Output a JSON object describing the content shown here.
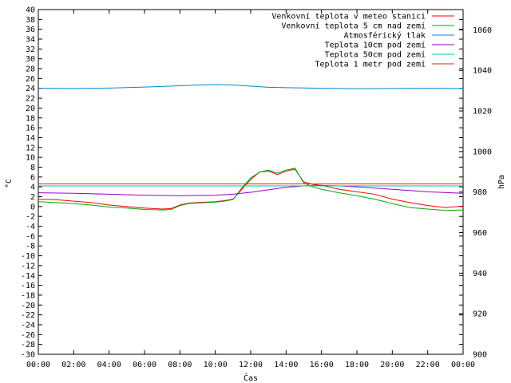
{
  "chart_data": {
    "type": "line",
    "xlabel": "Čas",
    "ylabel_left": "°C",
    "ylabel_right": "hPa",
    "xlim": [
      0,
      24
    ],
    "ylim_left": [
      -30,
      40
    ],
    "ylim_right": [
      900,
      1070
    ],
    "grid": false,
    "legend_position": "top-right",
    "x_ticks": [
      "00:00",
      "02:00",
      "04:00",
      "06:00",
      "08:00",
      "10:00",
      "12:00",
      "14:00",
      "16:00",
      "18:00",
      "20:00",
      "22:00",
      "00:00"
    ],
    "y_ticks_left": [
      "-30",
      "-28",
      "-26",
      "-24",
      "-22",
      "-20",
      "-18",
      "-16",
      "-14",
      "-12",
      "-10",
      "-8",
      "-6",
      "-4",
      "-2",
      "0",
      "2",
      "4",
      "6",
      "8",
      "10",
      "12",
      "14",
      "16",
      "18",
      "20",
      "22",
      "24",
      "26",
      "28",
      "30",
      "32",
      "34",
      "36",
      "38",
      "40"
    ],
    "y_ticks_right": [
      "900",
      "920",
      "940",
      "960",
      "980",
      "1000",
      "1020",
      "1040",
      "1060"
    ],
    "series": [
      {
        "name": "Venkovní teplota v meteo stanici",
        "color": "#ff0000",
        "axis": "left",
        "x": [
          0,
          1,
          2,
          3,
          4,
          5,
          6,
          7,
          7.5,
          8,
          8.5,
          9,
          10,
          10.5,
          11,
          11.5,
          12,
          12.5,
          13,
          13.5,
          14,
          14.5,
          15,
          15.5,
          16,
          17,
          18,
          19,
          20,
          21,
          22,
          23,
          24
        ],
        "y": [
          1.5,
          1.4,
          1.1,
          0.8,
          0.3,
          0,
          -0.3,
          -0.5,
          -0.4,
          0.3,
          0.7,
          0.8,
          1.0,
          1.2,
          1.5,
          3.5,
          5.5,
          7.0,
          7.2,
          6.5,
          7.2,
          7.6,
          5.0,
          4.5,
          4.3,
          3.5,
          3.0,
          2.5,
          1.5,
          0.8,
          0.2,
          -0.2,
          0.1
        ]
      },
      {
        "name": "Venkovní teplota 5 cm nad zemí",
        "color": "#00aa00",
        "axis": "left",
        "x": [
          0,
          1,
          2,
          3,
          4,
          5,
          6,
          7,
          7.5,
          8,
          8.5,
          9,
          10,
          10.5,
          11,
          11.5,
          12,
          12.5,
          13,
          13.5,
          14,
          14.5,
          15,
          15.5,
          16,
          17,
          18,
          19,
          20,
          21,
          22,
          23,
          24
        ],
        "y": [
          1.0,
          0.8,
          0.6,
          0.3,
          -0.1,
          -0.3,
          -0.6,
          -0.7,
          -0.6,
          0.2,
          0.6,
          0.7,
          0.9,
          1.1,
          1.4,
          3.8,
          5.8,
          7.0,
          7.4,
          6.8,
          7.4,
          7.8,
          4.8,
          4.0,
          3.5,
          2.8,
          2.2,
          1.5,
          0.6,
          -0.2,
          -0.5,
          -0.8,
          -0.7
        ]
      },
      {
        "name": "Atmosférický tlak",
        "color": "#0088cc",
        "axis": "right",
        "x": [
          0,
          2,
          4,
          6,
          8,
          9,
          10,
          11,
          12,
          13,
          14,
          16,
          18,
          20,
          22,
          24
        ],
        "y": [
          1031.2,
          1031.1,
          1031.3,
          1031.8,
          1032.4,
          1032.8,
          1033.0,
          1032.8,
          1032.2,
          1031.7,
          1031.5,
          1031.2,
          1031.0,
          1031.1,
          1031.2,
          1031.1
        ]
      },
      {
        "name": "Teplota 10cm pod zemí",
        "color": "#9900cc",
        "axis": "left",
        "x": [
          0,
          2,
          4,
          6,
          8,
          10,
          11,
          12,
          13,
          14,
          15,
          16,
          17,
          18,
          20,
          22,
          24
        ],
        "y": [
          2.8,
          2.7,
          2.5,
          2.3,
          2.2,
          2.3,
          2.5,
          2.9,
          3.4,
          3.9,
          4.2,
          4.3,
          4.2,
          4.0,
          3.5,
          3.0,
          2.7
        ]
      },
      {
        "name": "Teplota 50cm pod zemí",
        "color": "#00bfbf",
        "axis": "left",
        "x": [
          0,
          24
        ],
        "y": [
          4.2,
          4.2
        ]
      },
      {
        "name": "Teplota 1 metr pod zemí",
        "color": "#cc3300",
        "axis": "left",
        "x": [
          0,
          24
        ],
        "y": [
          4.6,
          4.6
        ]
      }
    ]
  }
}
